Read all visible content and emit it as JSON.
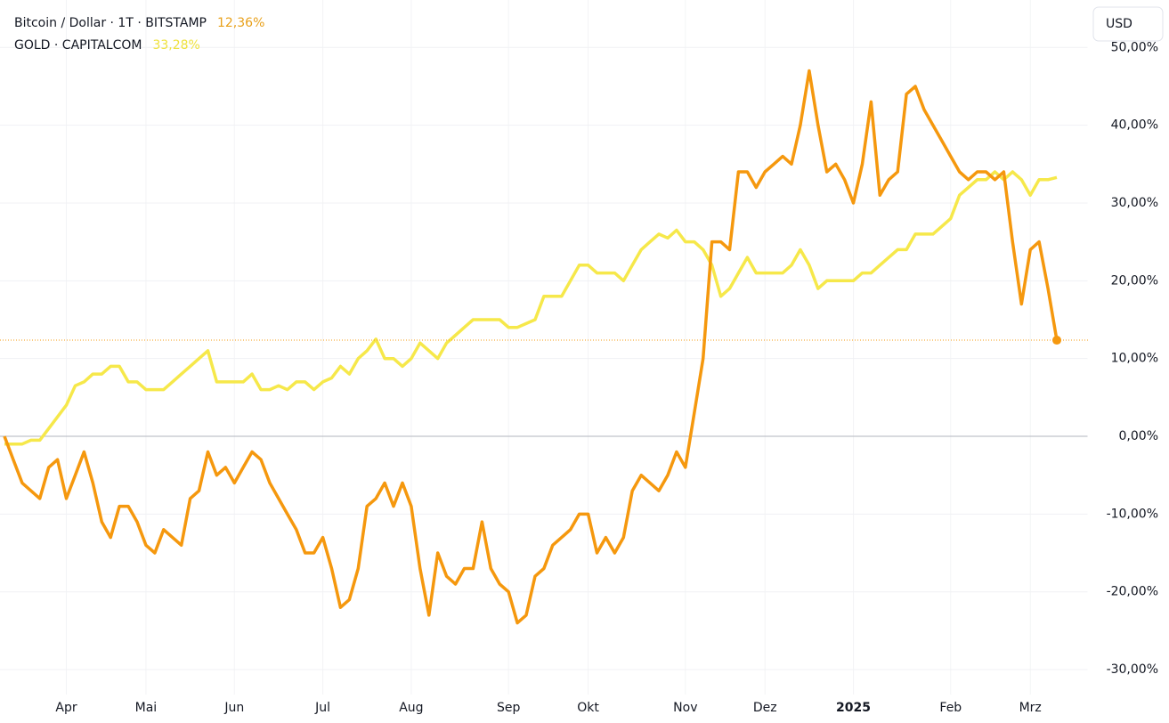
{
  "chart_data": {
    "type": "line",
    "currency_button": "USD",
    "categories": [
      null,
      null,
      null,
      null,
      null,
      null,
      null,
      "Apr",
      null,
      null,
      null,
      null,
      null,
      null,
      null,
      null,
      "Mai",
      null,
      null,
      null,
      null,
      null,
      null,
      null,
      null,
      null,
      "Jun",
      null,
      null,
      null,
      null,
      null,
      null,
      null,
      null,
      null,
      "Jul",
      null,
      null,
      null,
      null,
      null,
      null,
      null,
      null,
      null,
      "Aug",
      null,
      null,
      null,
      null,
      null,
      null,
      null,
      null,
      null,
      null,
      "Sep",
      null,
      null,
      null,
      null,
      null,
      null,
      null,
      null,
      "Okt",
      null,
      null,
      null,
      null,
      null,
      null,
      null,
      null,
      null,
      null,
      "Nov",
      null,
      null,
      null,
      null,
      null,
      null,
      null,
      null,
      "Dez",
      null,
      null,
      null,
      null,
      null,
      null,
      null,
      null,
      null,
      "2025",
      null,
      null,
      null,
      null,
      null,
      null,
      null,
      null,
      null,
      null,
      "Feb",
      null,
      null,
      null,
      null,
      null,
      null,
      null,
      null,
      "Mrz",
      null,
      null,
      null
    ],
    "series": [
      {
        "name": "GOLD · CAPITALCOM",
        "color": "#f6e84a",
        "last_value_label": "33,28%",
        "values": [
          -1,
          -1,
          -1,
          -0.5,
          -0.5,
          1,
          2.5,
          4,
          6.5,
          7,
          8,
          8,
          9,
          9,
          7,
          7,
          6,
          6,
          6,
          7,
          8,
          9,
          10,
          11,
          7,
          7,
          7,
          7,
          8,
          6,
          6,
          6.5,
          6,
          7,
          7,
          6,
          7,
          7.5,
          9,
          8,
          10,
          11,
          12.5,
          10,
          10,
          9,
          10,
          12,
          11,
          10,
          12,
          13,
          14,
          15,
          15,
          15,
          15,
          14,
          14,
          14.5,
          15,
          18,
          18,
          18,
          20,
          22,
          22,
          21,
          21,
          21,
          20,
          22,
          24,
          25,
          26,
          25.5,
          26.5,
          25,
          25,
          24,
          22,
          18,
          19,
          21,
          23,
          21,
          21,
          21,
          21,
          22,
          24,
          22,
          19,
          20,
          20,
          20,
          20,
          21,
          21,
          22,
          23,
          24,
          24,
          26,
          26,
          26,
          27,
          28,
          31,
          32,
          33,
          33,
          34,
          33,
          34,
          33,
          31,
          33,
          33,
          33.28
        ]
      },
      {
        "name": "Bitcoin / Dollar · 1T · BITSTAMP",
        "color": "#f5980e",
        "last_value_label": "12,36%",
        "values": [
          0,
          -3,
          -6,
          -7,
          -8,
          -4,
          -3,
          -8,
          -5,
          -2,
          -6,
          -11,
          -13,
          -9,
          -9,
          -11,
          -14,
          -15,
          -12,
          -13,
          -14,
          -8,
          -7,
          -2,
          -5,
          -4,
          -6,
          -4,
          -2,
          -3,
          -6,
          -8,
          -10,
          -12,
          -15,
          -15,
          -13,
          -17,
          -22,
          -21,
          -17,
          -9,
          -8,
          -6,
          -9,
          -6,
          -9,
          -17,
          -23,
          -15,
          -18,
          -19,
          -17,
          -17,
          -11,
          -17,
          -19,
          -20,
          -24,
          -23,
          -18,
          -17,
          -14,
          -13,
          -12,
          -10,
          -10,
          -15,
          -13,
          -15,
          -13,
          -7,
          -5,
          -6,
          -7,
          -5,
          -2,
          -4,
          3,
          10,
          25,
          25,
          24,
          34,
          34,
          32,
          34,
          35,
          36,
          35,
          40,
          47,
          40,
          34,
          35,
          33,
          30,
          35,
          43,
          31,
          33,
          34,
          44,
          45,
          42,
          40,
          38,
          36,
          34,
          33,
          34,
          34,
          33,
          34,
          25,
          17,
          24,
          25,
          19,
          12.36
        ]
      }
    ],
    "ylim": [
      -33.2,
      56.1
    ],
    "yticks": [
      {
        "value": -30,
        "label": "-30,00%"
      },
      {
        "value": -20,
        "label": "-20,00%"
      },
      {
        "value": -10,
        "label": "-10,00%"
      },
      {
        "value": 0,
        "label": "0,00%"
      },
      {
        "value": 10,
        "label": "10,00%"
      },
      {
        "value": 20,
        "label": "20,00%"
      },
      {
        "value": 30,
        "label": "30,00%"
      },
      {
        "value": 40,
        "label": "40,00%"
      },
      {
        "value": 50,
        "label": "50,00%"
      }
    ],
    "grid": true
  }
}
